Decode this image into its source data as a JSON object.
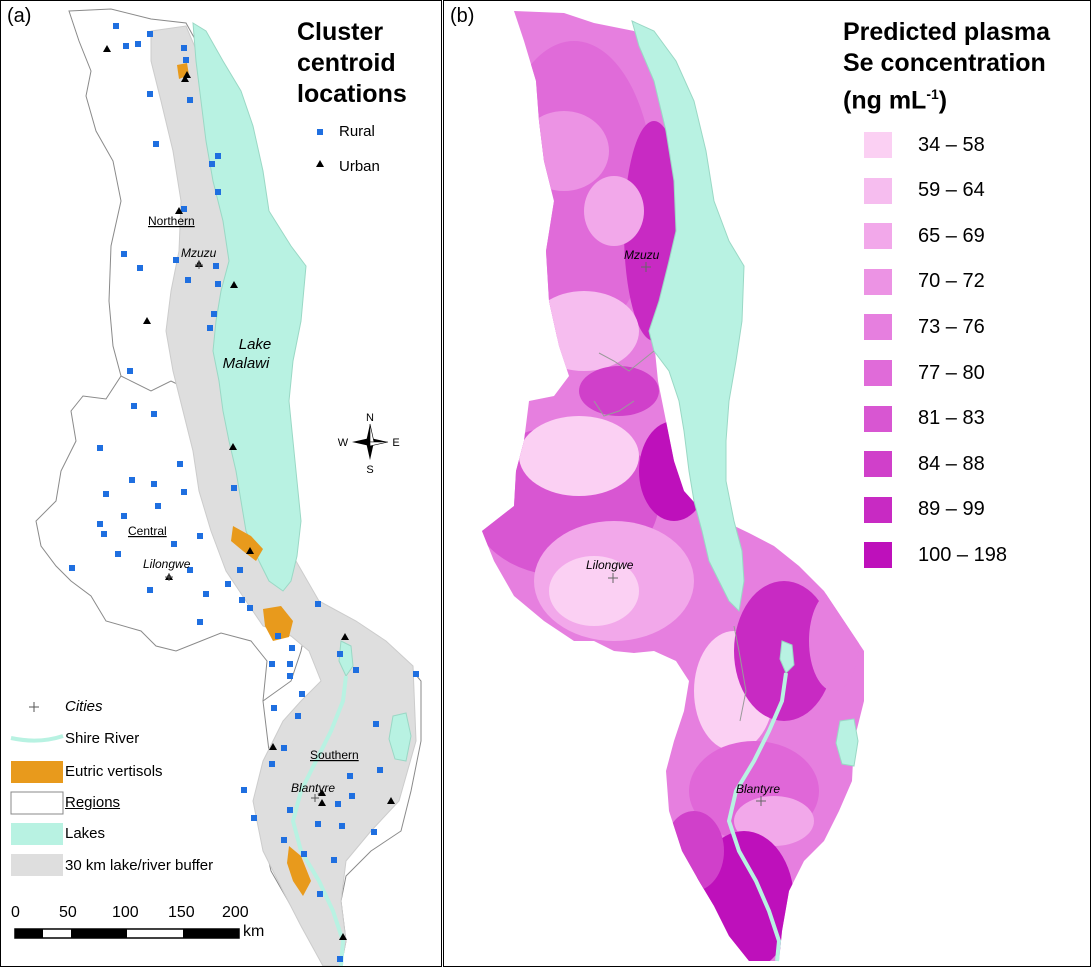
{
  "panel_a": {
    "label": "(a)",
    "title_lines": [
      "Cluster",
      "centroid",
      "locations"
    ],
    "legend_rural": "Rural",
    "legend_urban": "Urban",
    "region_northern": "Northern",
    "region_central": "Central",
    "region_southern": "Southern",
    "city_mzuzu": "Mzuzu",
    "city_lilongwe": "Lilongwe",
    "city_blantyre": "Blantyre",
    "lake_line1": "Lake",
    "lake_line2": "Malawi",
    "compass": {
      "n": "N",
      "s": "S",
      "e": "E",
      "w": "W"
    },
    "legend": {
      "cities": "Cities",
      "shire_river": "Shire River",
      "eutric_vertisols": "Eutric vertisols",
      "regions": "Regions",
      "lakes": "Lakes",
      "buffer": "30 km lake/river buffer"
    },
    "scale": {
      "ticks": [
        "0",
        "50",
        "100",
        "150",
        "200"
      ],
      "unit": "km"
    },
    "colors": {
      "rural": "#1f6fe0",
      "urban": "#000000",
      "lake": "#b8f2e2",
      "buffer": "#dedede",
      "vertisol": "#e89a1c"
    }
  },
  "panel_b": {
    "label": "(b)",
    "title_line1": "Predicted plasma",
    "title_line2": "Se concentration",
    "title_line3_prefix": "(ng mL",
    "title_line3_sup": "-1",
    "title_line3_suffix": ")",
    "city_mzuzu": "Mzuzu",
    "city_lilongwe": "Lilongwe",
    "city_blantyre": "Blantyre",
    "bins": [
      {
        "label": "34 – 58",
        "color": "#fbd0f3"
      },
      {
        "label": "59 – 64",
        "color": "#f6bdef"
      },
      {
        "label": "65 – 69",
        "color": "#f2a8ea"
      },
      {
        "label": "70 – 72",
        "color": "#ec93e4"
      },
      {
        "label": "73 – 76",
        "color": "#e67fdf"
      },
      {
        "label": "77 – 80",
        "color": "#e06bd9"
      },
      {
        "label": "81 – 83",
        "color": "#d856d2"
      },
      {
        "label": "84 – 88",
        "color": "#d040ca"
      },
      {
        "label": "89 – 99",
        "color": "#c82ac3"
      },
      {
        "label": "100 – 198",
        "color": "#be10bb"
      }
    ]
  }
}
